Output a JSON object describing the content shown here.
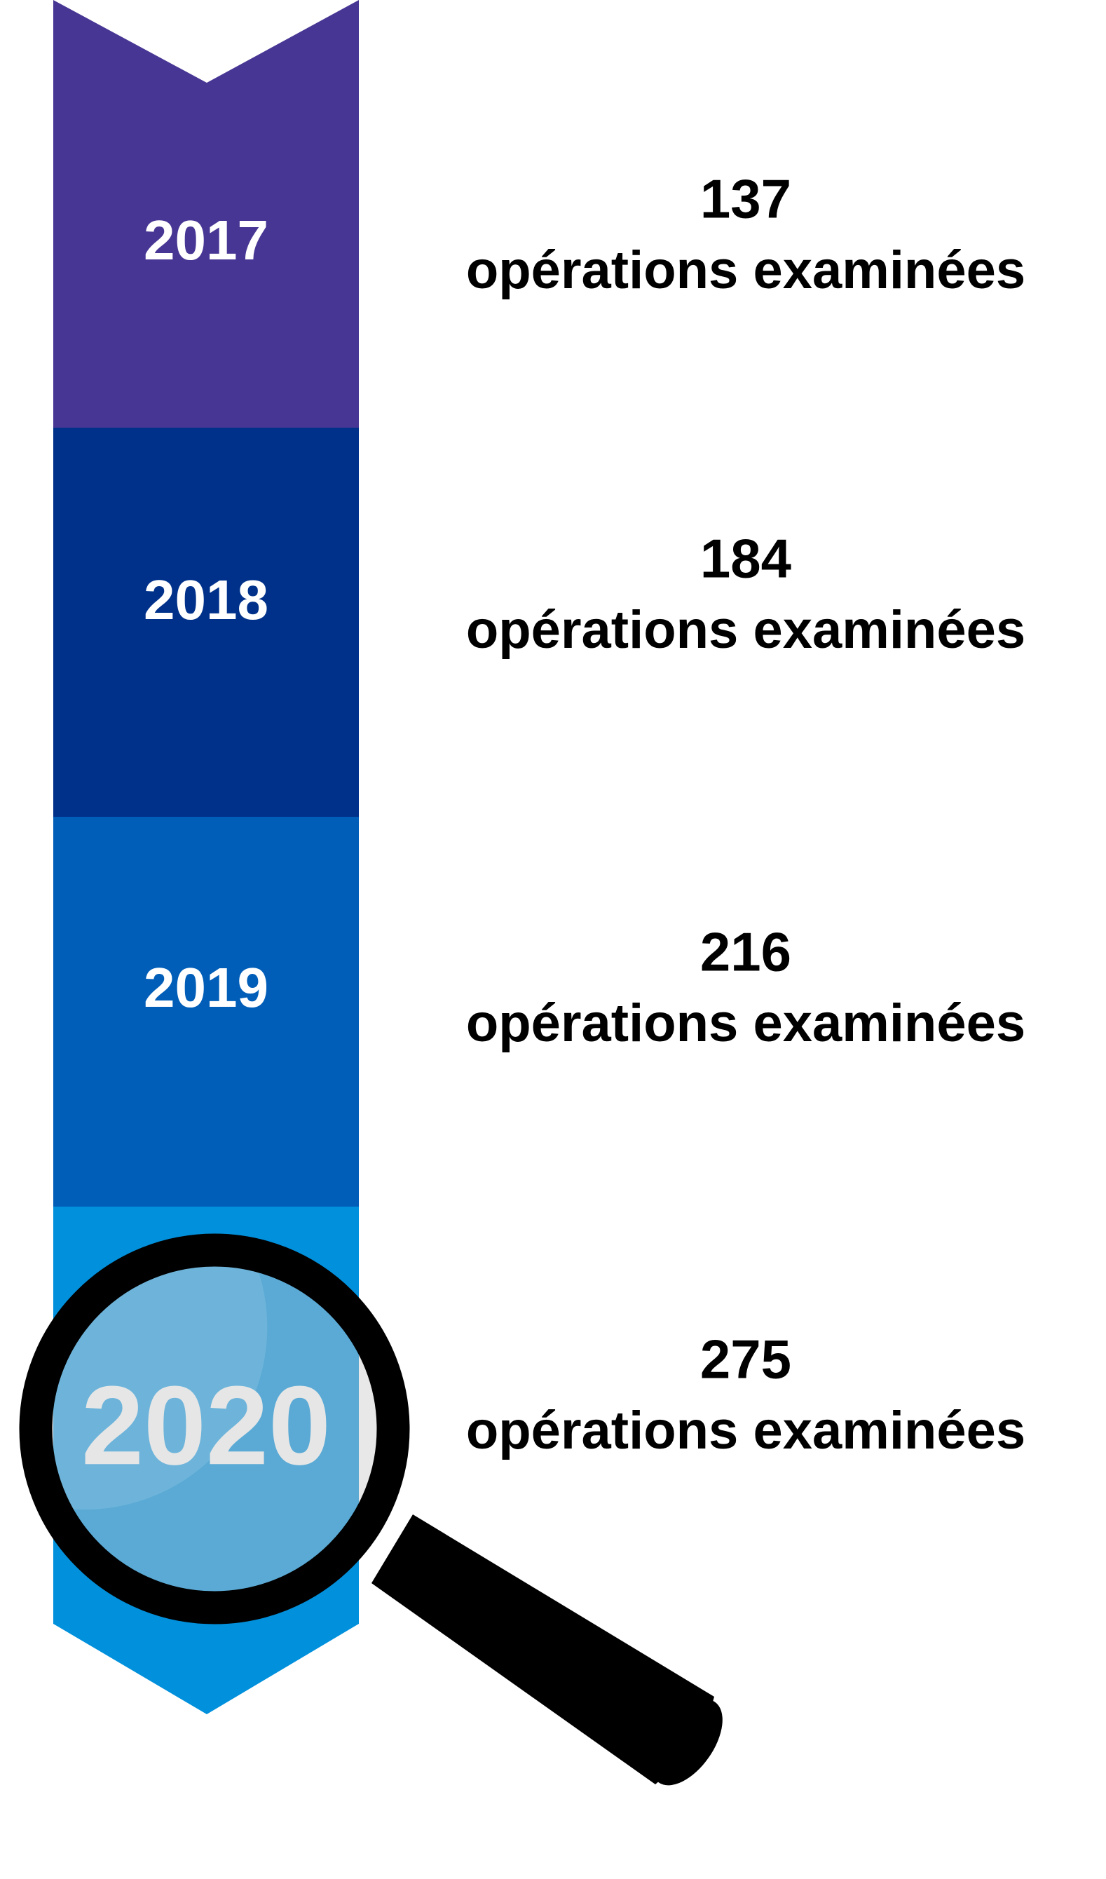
{
  "items": [
    {
      "year": "2017",
      "count": 137,
      "label": "opérations examinées"
    },
    {
      "year": "2018",
      "count": 184,
      "label": "opérations examinées"
    },
    {
      "year": "2019",
      "count": 216,
      "label": "opérations examinées"
    },
    {
      "year": "2020",
      "count": 275,
      "label": "opérations examinées"
    }
  ]
}
